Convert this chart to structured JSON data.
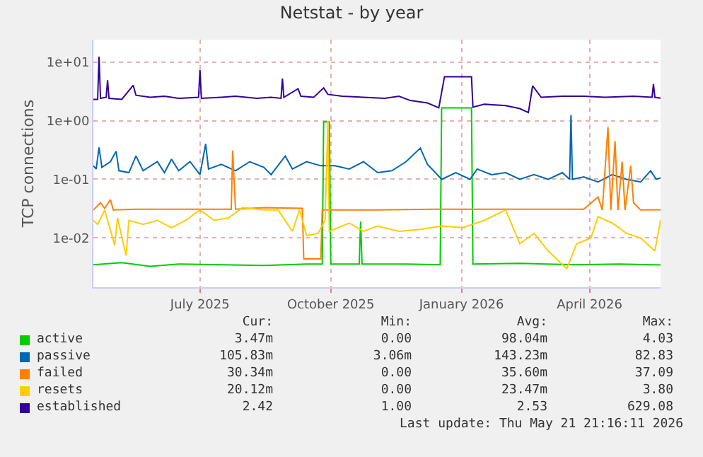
{
  "chart_data": {
    "type": "line",
    "title": "Netstat - by year",
    "ylabel": "TCP connections",
    "log": true,
    "grid": true,
    "legend": "bottom left",
    "marker": "none",
    "line_style": "solid",
    "xlim": [
      "2025-04-17",
      "2026-05-21"
    ],
    "xticks": [
      {
        "value": "2025-07-01",
        "label": "July 2025"
      },
      {
        "value": "2025-10-01",
        "label": "October 2025"
      },
      {
        "value": "2026-01-01",
        "label": "January 2026"
      },
      {
        "value": "2026-04-01",
        "label": "April 2026"
      }
    ],
    "ylim": [
      0.00145,
      24
    ],
    "yticks": [
      {
        "value": 0.01,
        "label": "1e-02"
      },
      {
        "value": 0.1,
        "label": "1e-01"
      },
      {
        "value": 1,
        "label": "1e+00"
      },
      {
        "value": 10,
        "label": "1e+01"
      }
    ],
    "series": [
      {
        "name": "active",
        "color": "#00cc00",
        "x": [
          "2025-04-17",
          "2025-05-07",
          "2025-05-27",
          "2025-06-16",
          "2025-07-16",
          "2025-08-15",
          "2025-09-14",
          "2025-09-25",
          "2025-09-26",
          "2025-09-30",
          "2025-10-01",
          "2025-10-21",
          "2025-10-22",
          "2025-10-23",
          "2025-11-23",
          "2025-12-17",
          "2025-12-18",
          "2026-01-08",
          "2026-01-09",
          "2026-02-11",
          "2026-03-23",
          "2026-04-22",
          "2026-05-21"
        ],
        "values": [
          0.0035,
          0.0038,
          0.0033,
          0.0036,
          0.0035,
          0.0034,
          0.0036,
          0.0036,
          0.95,
          0.95,
          0.0036,
          0.0036,
          0.019,
          0.0036,
          0.0036,
          0.0035,
          1.65,
          1.65,
          0.0036,
          0.0037,
          0.0035,
          0.0036,
          0.00347
        ]
      },
      {
        "name": "passive",
        "color": "#0066b3",
        "x": [
          "2025-04-17",
          "2025-04-19",
          "2025-04-21",
          "2025-04-23",
          "2025-04-29",
          "2025-05-03",
          "2025-05-05",
          "2025-05-12",
          "2025-05-17",
          "2025-05-22",
          "2025-06-01",
          "2025-06-06",
          "2025-06-11",
          "2025-06-16",
          "2025-06-24",
          "2025-07-01",
          "2025-07-05",
          "2025-07-07",
          "2025-07-16",
          "2025-07-26",
          "2025-08-05",
          "2025-08-15",
          "2025-08-20",
          "2025-08-30",
          "2025-09-04",
          "2025-09-14",
          "2025-09-24",
          "2025-10-04",
          "2025-10-14",
          "2025-10-24",
          "2025-11-03",
          "2025-11-13",
          "2025-11-23",
          "2025-12-03",
          "2025-12-08",
          "2025-12-18",
          "2025-12-28",
          "2026-01-07",
          "2026-01-12",
          "2026-01-22",
          "2026-02-01",
          "2026-02-11",
          "2026-02-21",
          "2026-03-03",
          "2026-03-13",
          "2026-03-18",
          "2026-03-19",
          "2026-03-20",
          "2026-03-28",
          "2026-04-07",
          "2026-04-17",
          "2026-04-27",
          "2026-05-07",
          "2026-05-14",
          "2026-05-18",
          "2026-05-21"
        ],
        "values": [
          0.17,
          0.15,
          0.35,
          0.16,
          0.2,
          0.3,
          0.14,
          0.13,
          0.25,
          0.14,
          0.2,
          0.13,
          0.22,
          0.14,
          0.2,
          0.12,
          0.4,
          0.15,
          0.18,
          0.14,
          0.2,
          0.16,
          0.12,
          0.25,
          0.15,
          0.2,
          0.17,
          0.17,
          0.15,
          0.2,
          0.13,
          0.14,
          0.2,
          0.34,
          0.18,
          0.1,
          0.13,
          0.1,
          0.15,
          0.12,
          0.13,
          0.1,
          0.12,
          0.1,
          0.13,
          0.1,
          1.25,
          0.1,
          0.11,
          0.09,
          0.12,
          0.1,
          0.09,
          0.14,
          0.1,
          0.106
        ]
      },
      {
        "name": "failed",
        "color": "#ff8000",
        "x": [
          "2025-04-17",
          "2025-04-22",
          "2025-04-25",
          "2025-04-29",
          "2025-05-01",
          "2025-05-17",
          "2025-06-16",
          "2025-07-23",
          "2025-07-24",
          "2025-07-26",
          "2025-08-15",
          "2025-09-11",
          "2025-09-12",
          "2025-09-24",
          "2025-09-25",
          "2025-11-03",
          "2025-12-13",
          "2026-01-22",
          "2026-03-03",
          "2026-03-28",
          "2026-04-07",
          "2026-04-10",
          "2026-04-14",
          "2026-04-16",
          "2026-04-19",
          "2026-04-21",
          "2026-04-24",
          "2026-04-26",
          "2026-04-30",
          "2026-05-02",
          "2026-05-07",
          "2026-05-21"
        ],
        "values": [
          0.03,
          0.04,
          0.032,
          0.045,
          0.03,
          0.031,
          0.031,
          0.031,
          0.31,
          0.031,
          0.033,
          0.032,
          0.0044,
          0.0044,
          0.03,
          0.03,
          0.031,
          0.031,
          0.031,
          0.031,
          0.05,
          0.03,
          0.78,
          0.03,
          0.45,
          0.03,
          0.2,
          0.03,
          0.17,
          0.04,
          0.03,
          0.0303
        ]
      },
      {
        "name": "resets",
        "color": "#ffcc00",
        "x": [
          "2025-04-17",
          "2025-04-20",
          "2025-04-25",
          "2025-05-02",
          "2025-05-04",
          "2025-05-10",
          "2025-05-12",
          "2025-05-22",
          "2025-06-01",
          "2025-06-11",
          "2025-06-21",
          "2025-07-01",
          "2025-07-11",
          "2025-07-21",
          "2025-07-31",
          "2025-08-15",
          "2025-08-25",
          "2025-09-04",
          "2025-09-09",
          "2025-09-14",
          "2025-09-22",
          "2025-09-27",
          "2025-09-29",
          "2025-09-30",
          "2025-10-14",
          "2025-10-24",
          "2025-11-03",
          "2025-11-18",
          "2025-12-03",
          "2025-12-18",
          "2026-01-02",
          "2026-01-17",
          "2026-02-01",
          "2026-02-11",
          "2026-02-21",
          "2026-03-03",
          "2026-03-16",
          "2026-03-23",
          "2026-04-02",
          "2026-04-07",
          "2026-04-17",
          "2026-04-27",
          "2026-05-07",
          "2026-05-17",
          "2026-05-21"
        ],
        "values": [
          0.02,
          0.017,
          0.03,
          0.0075,
          0.022,
          0.005,
          0.02,
          0.017,
          0.02,
          0.015,
          0.02,
          0.03,
          0.02,
          0.022,
          0.033,
          0.03,
          0.03,
          0.013,
          0.03,
          0.011,
          0.012,
          0.02,
          1.0,
          0.013,
          0.018,
          0.013,
          0.016,
          0.013,
          0.014,
          0.016,
          0.015,
          0.02,
          0.03,
          0.008,
          0.012,
          0.006,
          0.003,
          0.008,
          0.01,
          0.023,
          0.018,
          0.012,
          0.01,
          0.006,
          0.0201
        ]
      },
      {
        "name": "established",
        "color": "#330099",
        "x": [
          "2025-04-17",
          "2025-04-20",
          "2025-04-21",
          "2025-04-22",
          "2025-04-26",
          "2025-04-27",
          "2025-04-28",
          "2025-05-07",
          "2025-05-15",
          "2025-05-17",
          "2025-05-27",
          "2025-06-06",
          "2025-06-16",
          "2025-06-30",
          "2025-07-01",
          "2025-07-02",
          "2025-07-16",
          "2025-07-26",
          "2025-08-10",
          "2025-08-20",
          "2025-08-27",
          "2025-08-28",
          "2025-08-29",
          "2025-09-08",
          "2025-09-10",
          "2025-09-19",
          "2025-09-26",
          "2025-09-29",
          "2025-10-09",
          "2025-10-24",
          "2025-11-08",
          "2025-11-18",
          "2025-11-26",
          "2025-12-08",
          "2025-12-16",
          "2025-12-20",
          "2026-01-08",
          "2026-01-09",
          "2026-01-17",
          "2026-02-01",
          "2026-02-11",
          "2026-02-17",
          "2026-02-20",
          "2026-02-26",
          "2026-03-13",
          "2026-03-28",
          "2026-04-12",
          "2026-05-02",
          "2026-05-15",
          "2026-05-16",
          "2026-05-17",
          "2026-05-21"
        ],
        "values": [
          2.3,
          2.3,
          12.3,
          2.4,
          2.5,
          4.9,
          2.4,
          2.3,
          4.0,
          2.7,
          2.5,
          2.6,
          2.4,
          2.5,
          7.3,
          2.4,
          2.5,
          2.6,
          2.4,
          2.5,
          2.4,
          5.2,
          2.5,
          3.5,
          2.6,
          2.5,
          3.6,
          2.8,
          2.6,
          2.5,
          2.4,
          2.6,
          2.2,
          2.0,
          1.65,
          5.6,
          5.6,
          1.7,
          1.9,
          1.8,
          1.6,
          1.37,
          3.9,
          2.5,
          2.6,
          2.6,
          2.5,
          2.6,
          2.5,
          4.2,
          2.5,
          2.42
        ]
      }
    ],
    "annotations": [
      "Cur:",
      "Min:",
      "Avg:",
      "Max:",
      "3.47m",
      "0.00",
      "98.04m",
      "4.03",
      "105.83m",
      "3.06m",
      "143.23m",
      "82.83",
      "30.34m",
      "0.00",
      "35.60m",
      "37.09",
      "20.12m",
      "0.00",
      "23.47m",
      "3.80",
      "2.42",
      "1.00",
      "2.53",
      "629.08",
      "Last update: Thu May 21 21:16:11 2026"
    ]
  }
}
